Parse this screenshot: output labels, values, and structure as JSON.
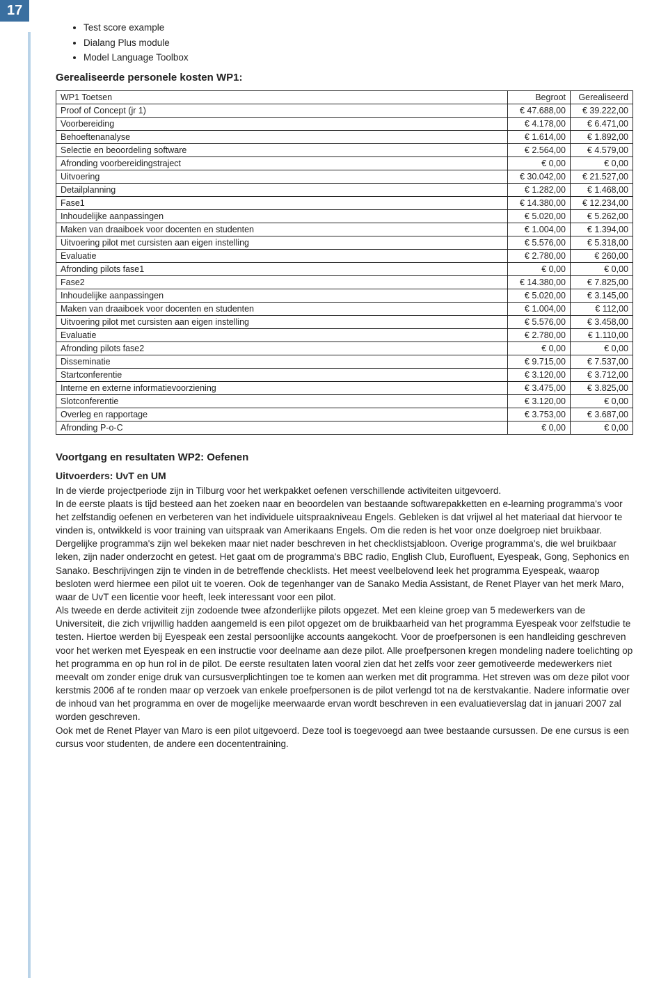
{
  "pageNumber": "17",
  "bullets": [
    "Test score example",
    "Dialang Plus module",
    "Model Language Toolbox"
  ],
  "section1Title": "Gerealiseerde personele kosten WP1:",
  "table": {
    "headers": [
      "WP1 Toetsen",
      "Begroot",
      "Gerealiseerd"
    ],
    "rows": [
      {
        "indent": 1,
        "label": "Proof of Concept (jr 1)",
        "c1": "€ 47.688,00",
        "c2": "€ 39.222,00"
      },
      {
        "indent": 2,
        "label": "Voorbereiding",
        "c1": "€ 4.178,00",
        "c2": "€ 6.471,00"
      },
      {
        "indent": 3,
        "label": "Behoeftenanalyse",
        "c1": "€ 1.614,00",
        "c2": "€ 1.892,00"
      },
      {
        "indent": 3,
        "label": "Selectie en beoordeling software",
        "c1": "€ 2.564,00",
        "c2": "€ 4.579,00"
      },
      {
        "indent": 3,
        "label": "Afronding voorbereidingstraject",
        "c1": "€ 0,00",
        "c2": "€ 0,00"
      },
      {
        "indent": 2,
        "label": "Uitvoering",
        "c1": "€ 30.042,00",
        "c2": "€ 21.527,00"
      },
      {
        "indent": 3,
        "label": "Detailplanning",
        "c1": "€ 1.282,00",
        "c2": "€ 1.468,00"
      },
      {
        "indent": 3,
        "label": "Fase1",
        "c1": "€ 14.380,00",
        "c2": "€ 12.234,00"
      },
      {
        "indent": 4,
        "label": "Inhoudelijke aanpassingen",
        "c1": "€ 5.020,00",
        "c2": "€ 5.262,00"
      },
      {
        "indent": 4,
        "label": "Maken van draaiboek voor docenten en studenten",
        "c1": "€ 1.004,00",
        "c2": "€ 1.394,00"
      },
      {
        "indent": 4,
        "label": "Uitvoering pilot met cursisten aan eigen instelling",
        "c1": "€ 5.576,00",
        "c2": "€ 5.318,00"
      },
      {
        "indent": 4,
        "label": "Evaluatie",
        "c1": "€ 2.780,00",
        "c2": "€ 260,00"
      },
      {
        "indent": 4,
        "label": "Afronding pilots fase1",
        "c1": "€ 0,00",
        "c2": "€ 0,00"
      },
      {
        "indent": 3,
        "label": "Fase2",
        "c1": "€ 14.380,00",
        "c2": "€ 7.825,00"
      },
      {
        "indent": 4,
        "label": "Inhoudelijke aanpassingen",
        "c1": "€ 5.020,00",
        "c2": "€ 3.145,00"
      },
      {
        "indent": 4,
        "label": "Maken van draaiboek voor docenten en studenten",
        "c1": "€ 1.004,00",
        "c2": "€ 112,00"
      },
      {
        "indent": 4,
        "label": "Uitvoering pilot met cursisten aan eigen instelling",
        "c1": "€ 5.576,00",
        "c2": "€ 3.458,00"
      },
      {
        "indent": 4,
        "label": "Evaluatie",
        "c1": "€ 2.780,00",
        "c2": "€ 1.110,00"
      },
      {
        "indent": 4,
        "label": "Afronding pilots fase2",
        "c1": "€ 0,00",
        "c2": "€ 0,00"
      },
      {
        "indent": 2,
        "label": "Disseminatie",
        "c1": "€ 9.715,00",
        "c2": "€ 7.537,00"
      },
      {
        "indent": 3,
        "label": "Startconferentie",
        "c1": "€ 3.120,00",
        "c2": "€ 3.712,00"
      },
      {
        "indent": 3,
        "label": "Interne en externe informatievoorziening",
        "c1": "€ 3.475,00",
        "c2": "€ 3.825,00"
      },
      {
        "indent": 3,
        "label": "Slotconferentie",
        "c1": "€ 3.120,00",
        "c2": "€ 0,00"
      },
      {
        "indent": 2,
        "label": "Overleg en rapportage",
        "c1": "€ 3.753,00",
        "c2": "€ 3.687,00"
      },
      {
        "indent": 1,
        "label": "Afronding P-o-C",
        "c1": "€ 0,00",
        "c2": "€ 0,00"
      }
    ]
  },
  "section2Title": "Voortgang en resultaten WP2: Oefenen",
  "section2Sub": "Uitvoerders: UvT en UM",
  "bodyText": "In de vierde projectperiode zijn in Tilburg voor het werkpakket oefenen verschillende activiteiten uitgevoerd.\nIn de eerste plaats is tijd besteed aan het zoeken naar en beoordelen van bestaande softwarepakketten en e-learning programma's voor het zelfstandig oefenen en verbeteren van het individuele uitspraakniveau Engels. Gebleken is dat vrijwel al het materiaal dat hiervoor te vinden is, ontwikkeld is voor training van uitspraak van Amerikaans Engels. Om die reden is het voor onze doelgroep niet bruikbaar. Dergelijke programma's zijn wel bekeken maar niet nader beschreven in het checklistsjabloon. Overige programma's, die wel bruikbaar leken, zijn nader onderzocht en getest. Het gaat om de programma's BBC radio, English Club, Eurofluent, Eyespeak, Gong, Sephonics en Sanako. Beschrijvingen zijn te vinden in de betreffende checklists. Het meest veelbelovend leek het programma Eyespeak, waarop besloten werd hiermee een pilot uit te voeren. Ook de tegenhanger van de Sanako Media Assistant, de Renet Player van het merk Maro, waar de UvT een licentie voor heeft, leek interessant voor een pilot.\nAls tweede en derde activiteit zijn zodoende twee afzonderlijke pilots opgezet. Met een kleine groep van 5 medewerkers van de Universiteit, die zich  vrijwillig hadden aangemeld is een pilot opgezet om de bruikbaarheid van het programma Eyespeak voor zelfstudie te testen. Hiertoe werden bij Eyespeak een zestal persoonlijke accounts aangekocht. Voor de proefpersonen  is een handleiding geschreven voor het werken met Eyespeak en een instructie voor deelname aan deze pilot. Alle proefpersonen kregen mondeling nadere toelichting op  het programma en op hun rol in de pilot. De eerste resultaten laten vooral zien dat het zelfs voor zeer gemotiveerde medewerkers niet meevalt om zonder enige druk van cursusverplichtingen toe te komen aan werken met dit programma. Het streven was om deze pilot voor kerstmis 2006 af te ronden maar op verzoek van enkele proefpersonen is de pilot verlengd tot na de kerstvakantie. Nadere informatie over de inhoud van het programma en over de mogelijke meerwaarde ervan wordt beschreven in een evaluatieverslag dat in januari 2007 zal worden geschreven.\nOok met de Renet Player van Maro is een pilot uitgevoerd. Deze tool is toegevoegd aan twee bestaande cursussen. De ene cursus is een cursus voor studenten, de andere een docententraining."
}
